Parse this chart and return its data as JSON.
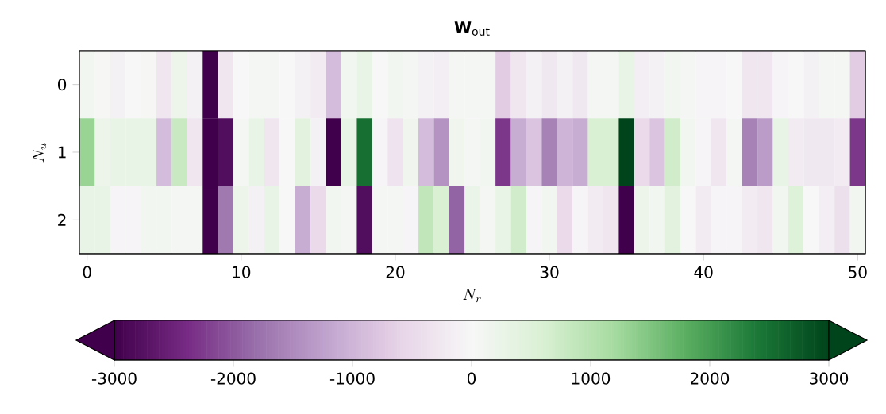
{
  "chart_data": {
    "type": "heatmap",
    "title": "\\mathbf{W}_{\\mathrm{out}}",
    "xlabel": "N_r",
    "ylabel": "N_u",
    "categories": [
      "0",
      null,
      null,
      null,
      null,
      null,
      null,
      null,
      null,
      null,
      "10",
      null,
      null,
      null,
      null,
      null,
      null,
      null,
      null,
      null,
      "20",
      null,
      null,
      null,
      null,
      null,
      null,
      null,
      null,
      null,
      "30",
      null,
      null,
      null,
      null,
      null,
      null,
      null,
      null,
      null,
      "40",
      null,
      null,
      null,
      null,
      null,
      null,
      null,
      null,
      null,
      "50"
    ],
    "y_categories": [
      "0",
      "1",
      "2"
    ],
    "cells": [
      [
        100,
        30,
        -100,
        0,
        30,
        -300,
        200,
        -100,
        -3000,
        -300,
        0,
        50,
        50,
        0,
        -100,
        -200,
        -900,
        100,
        300,
        0,
        100,
        50,
        -100,
        -150,
        50,
        50,
        50,
        -700,
        -300,
        -100,
        -250,
        -100,
        -250,
        50,
        50,
        300,
        -150,
        -100,
        100,
        50,
        -50,
        -50,
        0,
        -300,
        -300,
        -50,
        0,
        -100,
        50,
        50,
        -700
      ],
      [
        1300,
        200,
        300,
        300,
        300,
        -900,
        800,
        -300,
        -3000,
        -2800,
        50,
        300,
        -300,
        0,
        400,
        -100,
        -3000,
        300,
        2500,
        -50,
        -350,
        150,
        -900,
        -1400,
        150,
        50,
        100,
        -2300,
        -1100,
        -800,
        -1600,
        -1000,
        -1100,
        600,
        600,
        3000,
        -500,
        -800,
        700,
        100,
        -50,
        -300,
        50,
        -1600,
        -1300,
        300,
        -200,
        -250,
        -250,
        -200,
        -2300
      ],
      [
        300,
        300,
        -50,
        -50,
        100,
        100,
        50,
        50,
        -3000,
        -1700,
        200,
        -100,
        300,
        0,
        -1100,
        -500,
        100,
        50,
        -2800,
        50,
        50,
        -50,
        900,
        600,
        -1900,
        250,
        50,
        300,
        700,
        -50,
        100,
        -500,
        -50,
        -200,
        -300,
        -3000,
        200,
        100,
        400,
        0,
        -200,
        -50,
        -50,
        -200,
        -300,
        100,
        500,
        0,
        -150,
        -400,
        100
      ]
    ],
    "clim": [
      -3000,
      3000
    ],
    "cticks": [
      -3000,
      -2000,
      -1000,
      0,
      1000,
      2000,
      3000
    ]
  }
}
